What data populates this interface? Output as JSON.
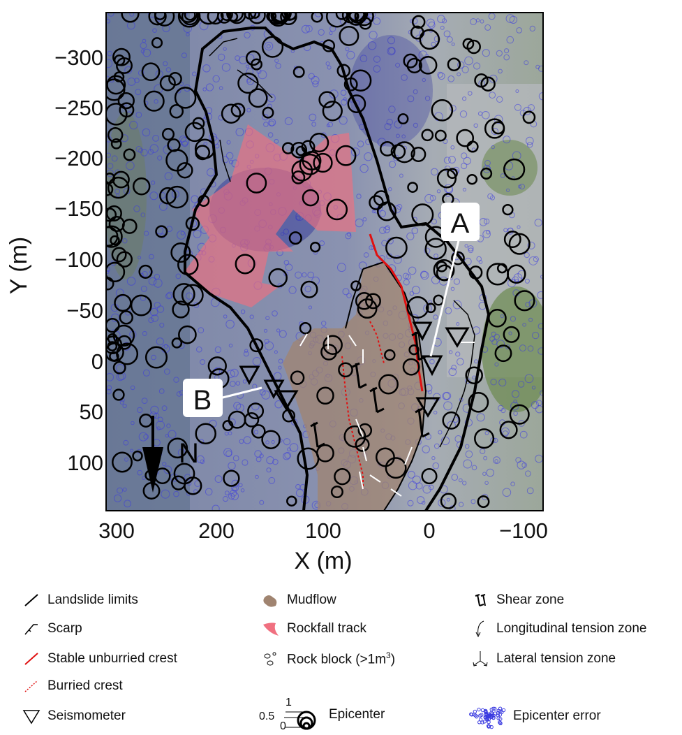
{
  "axes": {
    "x_label": "X (m)",
    "y_label": "Y (m)",
    "x_ticks": [
      "300",
      "200",
      "100",
      "0",
      "−100"
    ],
    "y_ticks": [
      "−300",
      "−250",
      "−200",
      "−150",
      "−100",
      "−50",
      "0",
      "50",
      "100"
    ]
  },
  "map": {
    "north_label": "N",
    "callouts": [
      "A",
      "B"
    ]
  },
  "legend": [
    {
      "id": "landslide-limits",
      "label": "Landslide limits"
    },
    {
      "id": "scarp",
      "label": "Scarp"
    },
    {
      "id": "stable-crest",
      "label": "Stable unburried crest"
    },
    {
      "id": "burried-crest",
      "label": "Burried crest"
    },
    {
      "id": "seismometer",
      "label": "Seismometer"
    },
    {
      "id": "mudflow",
      "label": "Mudflow"
    },
    {
      "id": "rockfall",
      "label": "Rockfall track"
    },
    {
      "id": "rock-block",
      "label": "Rock block (>1m",
      "sup": "3",
      "after": ")"
    },
    {
      "id": "epicenter",
      "label": "Epicenter",
      "scale": [
        "1",
        "0.5",
        "0"
      ]
    },
    {
      "id": "shear",
      "label": "Shear zone"
    },
    {
      "id": "long-tension",
      "label": "Longitudinal tension zone"
    },
    {
      "id": "lat-tension",
      "label": "Lateral tension zone"
    },
    {
      "id": "epi-error",
      "label": "Epicenter error"
    }
  ],
  "colors": {
    "landslide_line": "#000000",
    "stable_crest": "#e01010",
    "burried_crest": "#e01010",
    "mudflow": "#a08470",
    "rockfall": "#f07080",
    "epicenter_error": "#3a3ae0"
  }
}
